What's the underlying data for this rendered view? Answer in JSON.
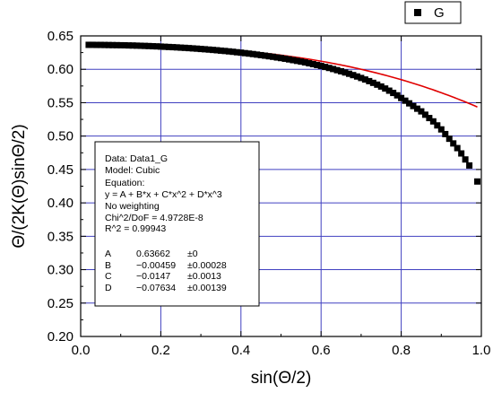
{
  "chart_data": {
    "type": "scatter",
    "title": "",
    "xlabel": "sin(Θ/2)",
    "ylabel": "Θ/(2K(Θ)sinΘ/2)",
    "xlim": [
      0,
      1.0
    ],
    "ylim": [
      0.2,
      0.65
    ],
    "xticks": [
      "0.0",
      "0.2",
      "0.4",
      "0.6",
      "0.8",
      "1.0"
    ],
    "yticks": [
      "0.20",
      "0.25",
      "0.30",
      "0.35",
      "0.40",
      "0.45",
      "0.50",
      "0.55",
      "0.60",
      "0.65"
    ],
    "grid": true,
    "grid_color": "#4040c0",
    "legend": {
      "placement": "top-right",
      "entries": [
        {
          "name": "G",
          "marker": "square",
          "color": "#000000"
        }
      ]
    },
    "series": [
      {
        "name": "G",
        "kind": "scatter",
        "marker": "square",
        "color": "#000000",
        "x": [
          0.02,
          0.03,
          0.04,
          0.05,
          0.06,
          0.07,
          0.08,
          0.09,
          0.1,
          0.11,
          0.12,
          0.13,
          0.14,
          0.15,
          0.16,
          0.17,
          0.18,
          0.19,
          0.2,
          0.21,
          0.22,
          0.23,
          0.24,
          0.25,
          0.26,
          0.27,
          0.28,
          0.29,
          0.3,
          0.31,
          0.32,
          0.33,
          0.34,
          0.35,
          0.36,
          0.37,
          0.38,
          0.39,
          0.4,
          0.41,
          0.42,
          0.43,
          0.44,
          0.45,
          0.46,
          0.47,
          0.48,
          0.49,
          0.5,
          0.51,
          0.52,
          0.53,
          0.54,
          0.55,
          0.56,
          0.57,
          0.58,
          0.59,
          0.6,
          0.61,
          0.62,
          0.63,
          0.64,
          0.65,
          0.66,
          0.67,
          0.68,
          0.69,
          0.7,
          0.71,
          0.72,
          0.73,
          0.74,
          0.75,
          0.76,
          0.77,
          0.78,
          0.79,
          0.8,
          0.81,
          0.82,
          0.83,
          0.84,
          0.85,
          0.86,
          0.87,
          0.88,
          0.89,
          0.9,
          0.91,
          0.92,
          0.93,
          0.94,
          0.95,
          0.96,
          0.97,
          0.99
        ],
        "y": [
          0.6366,
          0.6366,
          0.6365,
          0.6365,
          0.6364,
          0.6363,
          0.6362,
          0.6361,
          0.636,
          0.6359,
          0.6357,
          0.6356,
          0.6354,
          0.6352,
          0.635,
          0.6348,
          0.6345,
          0.6343,
          0.634,
          0.6337,
          0.6334,
          0.6331,
          0.6328,
          0.6324,
          0.6321,
          0.6317,
          0.6313,
          0.6309,
          0.6304,
          0.63,
          0.6295,
          0.629,
          0.6285,
          0.6279,
          0.6274,
          0.6268,
          0.6262,
          0.6255,
          0.6249,
          0.6242,
          0.6235,
          0.6228,
          0.622,
          0.6212,
          0.6204,
          0.6195,
          0.6187,
          0.6177,
          0.6168,
          0.6158,
          0.6148,
          0.6137,
          0.6126,
          0.6115,
          0.6103,
          0.609,
          0.6077,
          0.6064,
          0.605,
          0.6035,
          0.602,
          0.6004,
          0.5987,
          0.597,
          0.5952,
          0.5933,
          0.5913,
          0.5892,
          0.587,
          0.5847,
          0.5823,
          0.5797,
          0.577,
          0.5742,
          0.5712,
          0.568,
          0.5646,
          0.561,
          0.557,
          0.553,
          0.549,
          0.545,
          0.541,
          0.537,
          0.532,
          0.527,
          0.522,
          0.516,
          0.51,
          0.503,
          0.496,
          0.489,
          0.482,
          0.474,
          0.465,
          0.456,
          0.432
        ]
      },
      {
        "name": "",
        "kind": "line",
        "color": "#e00000",
        "fit": {
          "A": 0.63662,
          "B": -0.00459,
          "C": -0.0147,
          "D": -0.07634
        },
        "x_range": [
          0.02,
          0.99
        ]
      }
    ]
  },
  "fit_box": {
    "lines": [
      "Data: Data1_G",
      "Model: Cubic",
      "Equation:",
      "y = A + B*x + C*x^2 + D*x^3",
      "No weighting",
      "Chi^2/DoF       = 4.9728E-8",
      "R^2     =  0.99943"
    ],
    "params": [
      {
        "name": "A",
        "value": "0.63662",
        "error": "±0"
      },
      {
        "name": "B",
        "value": "−0.00459",
        "error": "±0.00028"
      },
      {
        "name": "C",
        "value": "−0.0147",
        "error": "±0.0013"
      },
      {
        "name": "D",
        "value": "−0.07634",
        "error": "±0.00139"
      }
    ]
  }
}
